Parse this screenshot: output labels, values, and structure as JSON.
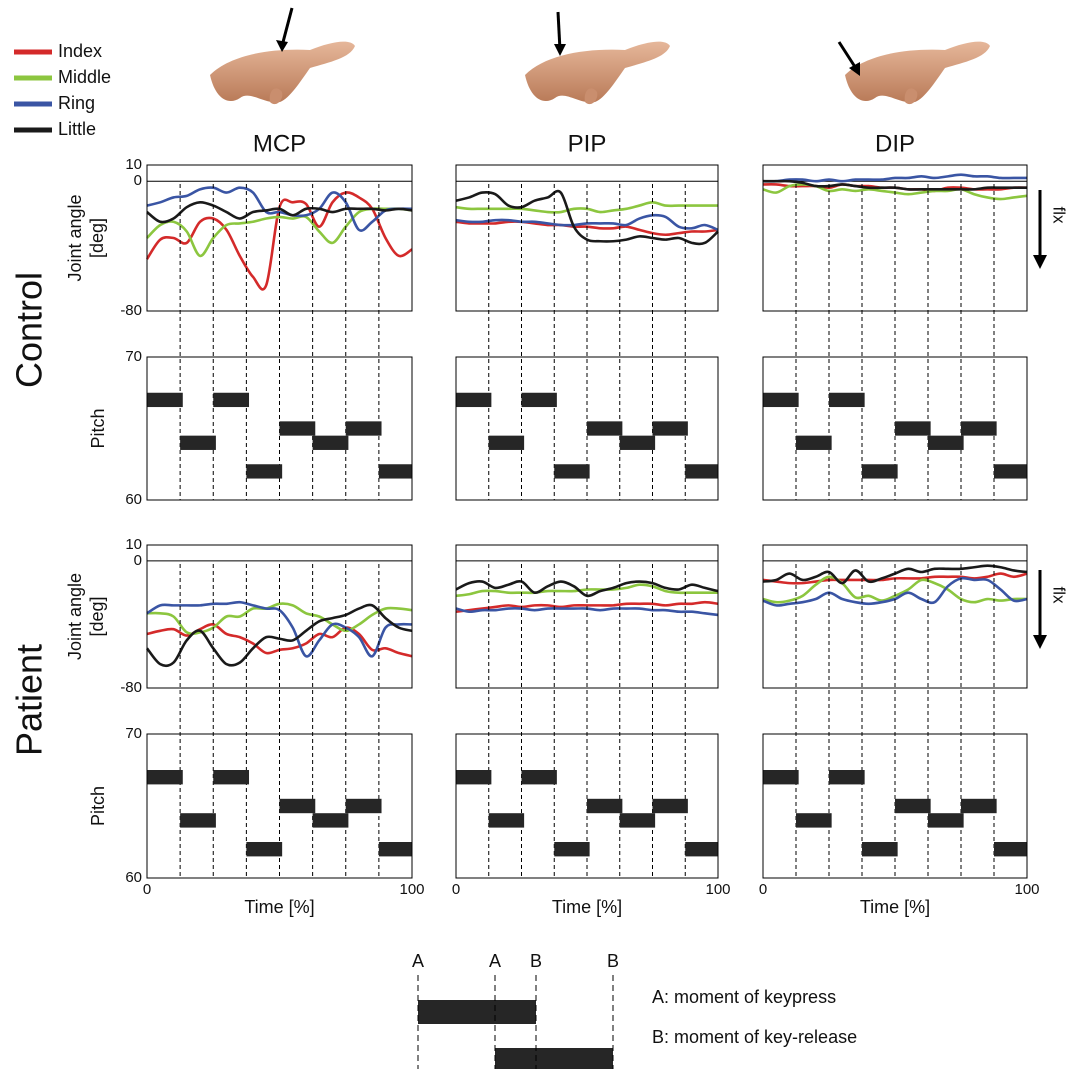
{
  "rows": [
    "Control",
    "Patient"
  ],
  "explanation": {
    "markers": [
      "A",
      "A",
      "B",
      "B"
    ],
    "notes": [
      "A: moment of keypress",
      "B: moment of key-release"
    ]
  },
  "chart_data": [
    {
      "type": "line",
      "title": "MCP",
      "ylabel": [
        "Joint angle",
        "[deg]"
      ],
      "xlim": [
        0,
        100
      ],
      "ylim": [
        -80,
        10
      ],
      "yticks": [
        -80,
        0,
        10
      ],
      "grid": true,
      "x": [
        0,
        5,
        10,
        15,
        20,
        25,
        30,
        35,
        40,
        45,
        50,
        55,
        60,
        65,
        70,
        75,
        80,
        85,
        90,
        95,
        100
      ],
      "series": [
        {
          "name": "Index",
          "color": "#d42a2a",
          "values": [
            -48,
            -36,
            -35,
            -38,
            -25,
            -23,
            -30,
            -46,
            -59,
            -64,
            -16,
            -13,
            -14,
            -28,
            -13,
            -7,
            -10,
            -17,
            -35,
            -46,
            -42
          ]
        },
        {
          "name": "Middle",
          "color": "#8cc63f",
          "values": [
            -35,
            -27,
            -25,
            -31,
            -46,
            -35,
            -27,
            -26,
            -25,
            -23,
            -22,
            -23,
            -22,
            -31,
            -38,
            -28,
            -19,
            -17,
            -17,
            -17,
            -18
          ]
        },
        {
          "name": "Ring",
          "color": "#3a55a4",
          "values": [
            -15,
            -13,
            -10,
            -9,
            -5,
            -4,
            -7,
            -4,
            -7,
            -19,
            -19,
            -21,
            -21,
            -17,
            -7,
            -13,
            -30,
            -25,
            -18,
            -17,
            -17
          ]
        },
        {
          "name": "Little",
          "color": "#1a1a1a",
          "values": [
            -19,
            -25,
            -23,
            -16,
            -13,
            -15,
            -19,
            -23,
            -19,
            -18,
            -17,
            -21,
            -17,
            -17,
            -19,
            -17,
            -17,
            -17,
            -18,
            -17,
            -18
          ]
        }
      ]
    },
    {
      "type": "line",
      "title": "PIP",
      "xlim": [
        0,
        100
      ],
      "ylim": [
        -80,
        10
      ],
      "yticks": [
        -80,
        0,
        10
      ],
      "grid": true,
      "x": [
        0,
        5,
        10,
        15,
        20,
        25,
        30,
        35,
        40,
        45,
        50,
        55,
        60,
        65,
        70,
        75,
        80,
        85,
        90,
        95,
        100
      ],
      "series": [
        {
          "name": "Index",
          "color": "#d42a2a",
          "values": [
            -25,
            -26,
            -26,
            -26,
            -25,
            -25,
            -26,
            -27,
            -27,
            -28,
            -28,
            -29,
            -29,
            -28,
            -30,
            -32,
            -33,
            -32,
            -31,
            -31,
            -30
          ]
        },
        {
          "name": "Middle",
          "color": "#8cc63f",
          "values": [
            -16,
            -17,
            -17,
            -17,
            -17,
            -17,
            -18,
            -19,
            -19,
            -17,
            -17,
            -19,
            -18,
            -17,
            -15,
            -13,
            -15,
            -15,
            -15,
            -15,
            -15
          ]
        },
        {
          "name": "Ring",
          "color": "#3a55a4",
          "values": [
            -24,
            -25,
            -25,
            -24,
            -24,
            -25,
            -25,
            -26,
            -27,
            -27,
            -26,
            -26,
            -26,
            -27,
            -23,
            -21,
            -22,
            -28,
            -29,
            -27,
            -30
          ]
        },
        {
          "name": "Little",
          "color": "#1a1a1a",
          "values": [
            -12,
            -10,
            -7,
            -8,
            -15,
            -16,
            -12,
            -10,
            -7,
            -28,
            -36,
            -37,
            -37,
            -36,
            -34,
            -35,
            -36,
            -35,
            -38,
            -38,
            -31
          ]
        }
      ]
    },
    {
      "type": "line",
      "title": "DIP",
      "annotation": "flx",
      "xlim": [
        0,
        100
      ],
      "ylim": [
        -80,
        10
      ],
      "yticks": [
        -80,
        0,
        10
      ],
      "grid": true,
      "x": [
        0,
        5,
        10,
        15,
        20,
        25,
        30,
        35,
        40,
        45,
        50,
        55,
        60,
        65,
        70,
        75,
        80,
        85,
        90,
        95,
        100
      ],
      "series": [
        {
          "name": "Index",
          "color": "#d42a2a",
          "values": [
            -2,
            -2,
            -3,
            -3,
            -3,
            -4,
            -2,
            -3,
            -3,
            -4,
            -4,
            -5,
            -5,
            -6,
            -4,
            -4,
            -5,
            -5,
            -5,
            -4,
            -4
          ]
        },
        {
          "name": "Middle",
          "color": "#8cc63f",
          "values": [
            -5,
            -7,
            -3,
            -2,
            -3,
            -6,
            -5,
            -6,
            -5,
            -6,
            -7,
            -8,
            -7,
            -6,
            -6,
            -5,
            -8,
            -10,
            -11,
            -10,
            -9
          ]
        },
        {
          "name": "Ring",
          "color": "#3a55a4",
          "values": [
            0,
            0,
            1,
            1,
            0,
            1,
            0,
            1,
            1,
            1,
            2,
            2,
            3,
            2,
            3,
            4,
            3,
            3,
            2,
            2,
            2
          ]
        },
        {
          "name": "Little",
          "color": "#1a1a1a",
          "values": [
            0,
            0,
            0,
            -1,
            -3,
            -3,
            -2,
            -3,
            -4,
            -4,
            -4,
            -5,
            -5,
            -5,
            -5,
            -5,
            -5,
            -4,
            -4,
            -4,
            -4
          ]
        }
      ]
    },
    {
      "type": "pianoroll",
      "ylabel": [
        "Pitch"
      ],
      "xlim": [
        0,
        100
      ],
      "ylim": [
        60,
        70
      ],
      "yticks": [
        60,
        70
      ],
      "color": "#262626",
      "notes": {
        "start": [
          0,
          12.5,
          25,
          37.5,
          50,
          62.5,
          75,
          87.5
        ],
        "end": [
          13.5,
          26,
          38.5,
          51,
          63.5,
          76,
          88.5,
          100
        ],
        "pitch": [
          67,
          64,
          67,
          62,
          65,
          64,
          65,
          62
        ]
      }
    },
    {
      "type": "pianoroll",
      "xlim": [
        0,
        100
      ],
      "ylim": [
        60,
        70
      ],
      "color": "#262626",
      "notes": {
        "start": [
          0,
          12.5,
          25,
          37.5,
          50,
          62.5,
          75,
          87.5
        ],
        "end": [
          13.5,
          26,
          38.5,
          51,
          63.5,
          76,
          88.5,
          100
        ],
        "pitch": [
          67,
          64,
          67,
          62,
          65,
          64,
          65,
          62
        ]
      }
    },
    {
      "type": "pianoroll",
      "xlim": [
        0,
        100
      ],
      "ylim": [
        60,
        70
      ],
      "color": "#262626",
      "notes": {
        "start": [
          0,
          12.5,
          25,
          37.5,
          50,
          62.5,
          75,
          87.5
        ],
        "end": [
          13.5,
          26,
          38.5,
          51,
          63.5,
          76,
          88.5,
          100
        ],
        "pitch": [
          67,
          64,
          67,
          62,
          65,
          64,
          65,
          62
        ]
      }
    },
    {
      "type": "line",
      "ylabel": [
        "Joint angle",
        "[deg]"
      ],
      "xlim": [
        0,
        100
      ],
      "ylim": [
        -80,
        10
      ],
      "yticks": [
        -80,
        0,
        10
      ],
      "grid": true,
      "x": [
        0,
        5,
        10,
        15,
        20,
        25,
        30,
        35,
        40,
        45,
        50,
        55,
        60,
        65,
        70,
        75,
        80,
        85,
        90,
        95,
        100
      ],
      "series": [
        {
          "name": "Index",
          "color": "#d42a2a",
          "values": [
            -46,
            -44,
            -43,
            -47,
            -43,
            -40,
            -46,
            -48,
            -52,
            -58,
            -56,
            -55,
            -52,
            -46,
            -48,
            -42,
            -46,
            -56,
            -55,
            -58,
            -60
          ]
        },
        {
          "name": "Middle",
          "color": "#8cc63f",
          "values": [
            -33,
            -33,
            -35,
            -45,
            -45,
            -42,
            -35,
            -35,
            -30,
            -30,
            -27,
            -28,
            -33,
            -35,
            -40,
            -44,
            -40,
            -34,
            -30,
            -30,
            -31
          ]
        },
        {
          "name": "Ring",
          "color": "#3a55a4",
          "values": [
            -33,
            -28,
            -28,
            -28,
            -28,
            -27,
            -27,
            -26,
            -28,
            -30,
            -31,
            -42,
            -60,
            -50,
            -40,
            -42,
            -48,
            -60,
            -42,
            -40,
            -40
          ]
        },
        {
          "name": "Little",
          "color": "#1a1a1a",
          "values": [
            -55,
            -65,
            -64,
            -50,
            -44,
            -55,
            -65,
            -64,
            -55,
            -48,
            -49,
            -50,
            -44,
            -38,
            -36,
            -34,
            -30,
            -28,
            -36,
            -42,
            -44
          ]
        }
      ]
    },
    {
      "type": "line",
      "xlim": [
        0,
        100
      ],
      "ylim": [
        -80,
        10
      ],
      "yticks": [
        -80,
        0,
        10
      ],
      "grid": true,
      "x": [
        0,
        5,
        10,
        15,
        20,
        25,
        30,
        35,
        40,
        45,
        50,
        55,
        60,
        65,
        70,
        75,
        80,
        85,
        90,
        95,
        100
      ],
      "series": [
        {
          "name": "Index",
          "color": "#d42a2a",
          "values": [
            -32,
            -31,
            -30,
            -29,
            -28,
            -29,
            -28,
            -28,
            -29,
            -28,
            -28,
            -28,
            -28,
            -27,
            -27,
            -27,
            -28,
            -27,
            -27,
            -26,
            -27
          ]
        },
        {
          "name": "Middle",
          "color": "#8cc63f",
          "values": [
            -22,
            -21,
            -19,
            -19,
            -20,
            -20,
            -20,
            -19,
            -19,
            -19,
            -18,
            -18,
            -18,
            -17,
            -15,
            -16,
            -19,
            -20,
            -20,
            -20,
            -20
          ]
        },
        {
          "name": "Ring",
          "color": "#3a55a4",
          "values": [
            -30,
            -32,
            -31,
            -31,
            -30,
            -30,
            -31,
            -30,
            -30,
            -30,
            -30,
            -31,
            -30,
            -30,
            -30,
            -31,
            -31,
            -32,
            -32,
            -33,
            -34
          ]
        },
        {
          "name": "Little",
          "color": "#1a1a1a",
          "values": [
            -18,
            -14,
            -13,
            -17,
            -15,
            -13,
            -20,
            -16,
            -13,
            -16,
            -22,
            -19,
            -17,
            -14,
            -13,
            -14,
            -17,
            -18,
            -15,
            -17,
            -19
          ]
        }
      ]
    },
    {
      "type": "line",
      "annotation": "flx",
      "xlim": [
        0,
        100
      ],
      "ylim": [
        -80,
        10
      ],
      "yticks": [
        -80,
        0,
        10
      ],
      "grid": true,
      "x": [
        0,
        5,
        10,
        15,
        20,
        25,
        30,
        35,
        40,
        45,
        50,
        55,
        60,
        65,
        70,
        75,
        80,
        85,
        90,
        95,
        100
      ],
      "series": [
        {
          "name": "Index",
          "color": "#d42a2a",
          "values": [
            -12,
            -13,
            -14,
            -14,
            -13,
            -12,
            -12,
            -12,
            -12,
            -12,
            -11,
            -11,
            -11,
            -10,
            -10,
            -10,
            -11,
            -10,
            -8,
            -10,
            -8
          ]
        },
        {
          "name": "Middle",
          "color": "#8cc63f",
          "values": [
            -24,
            -26,
            -25,
            -22,
            -15,
            -10,
            -14,
            -23,
            -22,
            -25,
            -22,
            -18,
            -12,
            -14,
            -18,
            -24,
            -26,
            -24,
            -25,
            -24,
            -24
          ]
        },
        {
          "name": "Ring",
          "color": "#3a55a4",
          "values": [
            -25,
            -28,
            -27,
            -26,
            -24,
            -20,
            -24,
            -26,
            -27,
            -26,
            -24,
            -20,
            -24,
            -26,
            -16,
            -11,
            -12,
            -12,
            -18,
            -25,
            -24
          ]
        },
        {
          "name": "Little",
          "color": "#1a1a1a",
          "values": [
            -13,
            -12,
            -8,
            -12,
            -10,
            -7,
            -14,
            -6,
            -13,
            -11,
            -8,
            -5,
            -7,
            -5,
            -5,
            -5,
            -4,
            -3,
            -4,
            -6,
            -7
          ]
        }
      ]
    },
    {
      "type": "pianoroll",
      "ylabel": [
        "Pitch"
      ],
      "xlabel": "Time [%]",
      "xlim": [
        0,
        100
      ],
      "xticks": [
        0,
        100
      ],
      "ylim": [
        60,
        70
      ],
      "yticks": [
        60,
        70
      ],
      "color": "#262626",
      "notes": {
        "start": [
          0,
          12.5,
          25,
          37.5,
          50,
          62.5,
          75,
          87.5
        ],
        "end": [
          13.5,
          26,
          38.5,
          51,
          63.5,
          76,
          88.5,
          100
        ],
        "pitch": [
          67,
          64,
          67,
          62,
          65,
          64,
          65,
          62
        ]
      }
    },
    {
      "type": "pianoroll",
      "xlabel": "Time [%]",
      "xlim": [
        0,
        100
      ],
      "xticks": [
        0,
        100
      ],
      "ylim": [
        60,
        70
      ],
      "color": "#262626",
      "notes": {
        "start": [
          0,
          12.5,
          25,
          37.5,
          50,
          62.5,
          75,
          87.5
        ],
        "end": [
          13.5,
          26,
          38.5,
          51,
          63.5,
          76,
          88.5,
          100
        ],
        "pitch": [
          67,
          64,
          67,
          62,
          65,
          64,
          65,
          62
        ]
      }
    },
    {
      "type": "pianoroll",
      "xlabel": "Time [%]",
      "xlim": [
        0,
        100
      ],
      "xticks": [
        0,
        100
      ],
      "ylim": [
        60,
        70
      ],
      "color": "#262626",
      "notes": {
        "start": [
          0,
          12.5,
          25,
          37.5,
          50,
          62.5,
          75,
          87.5
        ],
        "end": [
          13.5,
          26,
          38.5,
          51,
          63.5,
          76,
          88.5,
          100
        ],
        "pitch": [
          67,
          64,
          67,
          62,
          65,
          64,
          65,
          62
        ]
      }
    }
  ]
}
